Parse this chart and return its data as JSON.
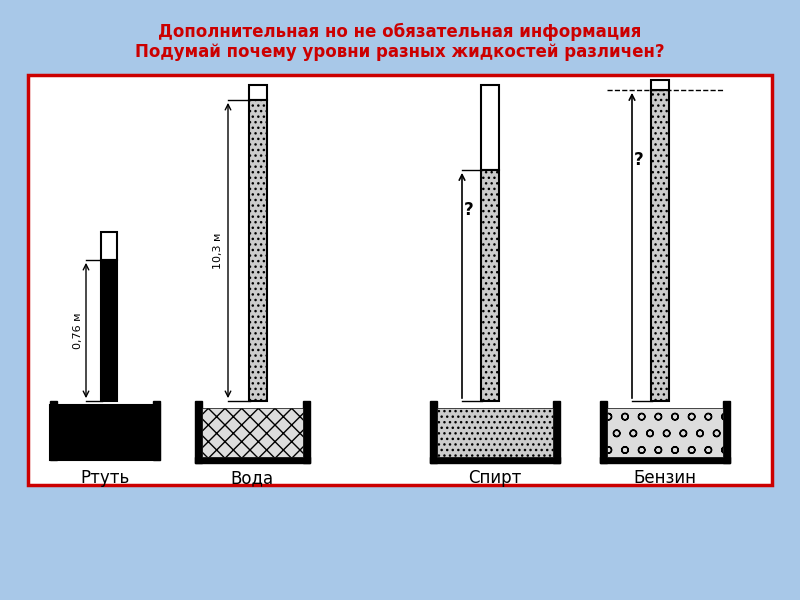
{
  "title_line1": "Дополнительная но не обязательная информация",
  "title_line2": "Подумай почему уровни разных жидкостей различен?",
  "title_color": "#cc0000",
  "title_fontsize": 12,
  "bg_outer": "#a8c8e8",
  "bg_inner": "#ffffff",
  "border_color_red": "#cc0000",
  "border_color_gray": "#888888",
  "labels": [
    "Ртуть",
    "Вода",
    "Спирт",
    "Бензин"
  ],
  "label_fontsize": 12,
  "annotation_mercury": "0,76 м",
  "annotation_water": "10,3 м",
  "annotation_spirit": "?",
  "annotation_gasoline": "?"
}
